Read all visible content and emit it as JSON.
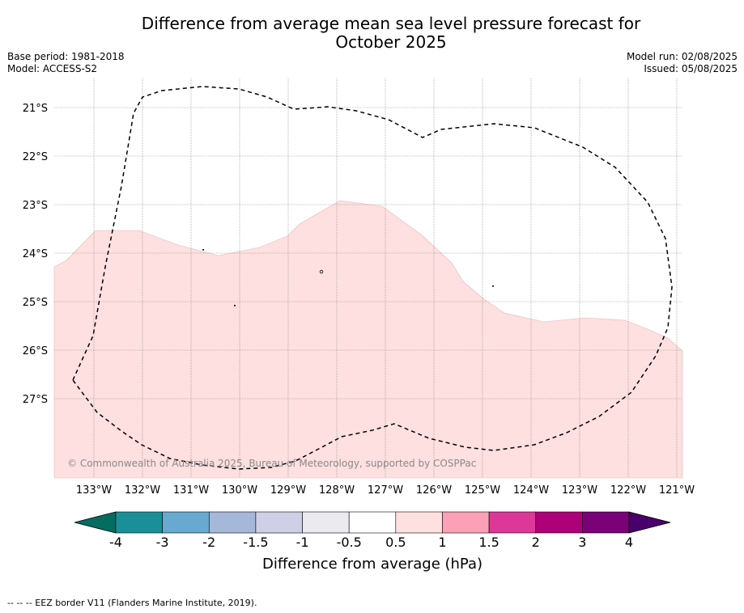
{
  "title_line1": "Difference from average mean sea level pressure forecast for",
  "title_line2": "October 2025",
  "base_period": "Base period: 1981-2018",
  "model": "Model: ACCESS-S2",
  "model_run": "Model run: 02/08/2025",
  "issued": "Issued: 05/08/2025",
  "copyright": "© Commonwealth of Australia 2025, Bureau of Meteorology, supported by COSPPac",
  "footer": "--  --  -- EEZ border V11 (Flanders Marine Institute, 2019).",
  "map": {
    "lat_labels": [
      "21°S",
      "22°S",
      "23°S",
      "24°S",
      "25°S",
      "26°S",
      "27°S"
    ],
    "lon_labels": [
      "133°W",
      "132°W",
      "131°W",
      "130°W",
      "129°W",
      "128°W",
      "127°W",
      "126°W",
      "125°W",
      "124°W",
      "123°W",
      "122°W",
      "121°W"
    ],
    "anomaly_fill_color": "#fde0df"
  },
  "colorbar": {
    "label": "Difference from average (hPa)",
    "tick_labels": [
      "-4",
      "-3",
      "-2",
      "-1.5",
      "-1",
      "-0.5",
      "0.5",
      "1",
      "1.5",
      "2",
      "3",
      "4"
    ],
    "colors": [
      "#1b8f97",
      "#67a9d1",
      "#a5b8da",
      "#cfd0e6",
      "#ebeaee",
      "#ffffff",
      "#fde0df",
      "#fba0b6",
      "#dc3799",
      "#ae0179",
      "#7a0177"
    ],
    "low_extend_color": "#046d62",
    "high_extend_color": "#49006a"
  }
}
